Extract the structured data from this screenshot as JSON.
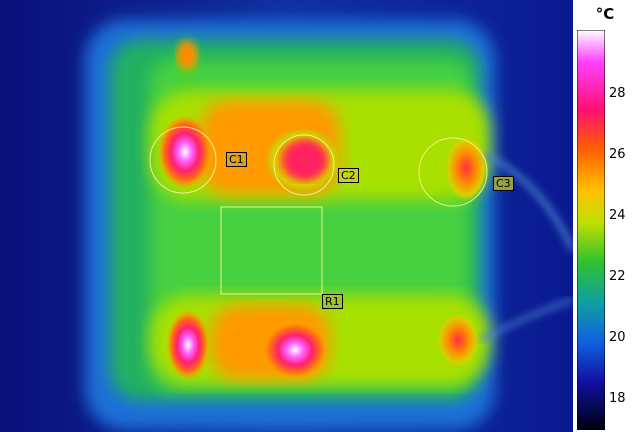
{
  "scale": {
    "unit": "°C",
    "ticks": [
      "28",
      "26",
      "24",
      "22",
      "20",
      "18"
    ]
  },
  "markers": {
    "circles": [
      {
        "label": "C1"
      },
      {
        "label": "C2"
      },
      {
        "label": "C3"
      }
    ],
    "rectangles": [
      {
        "label": "R1"
      }
    ]
  },
  "colors": {
    "marker_outline": "#f4f08a",
    "label_bg_c1": "#d9a21f",
    "label_bg_c2": "#c7d21a",
    "label_bg_c3": "#9aa044",
    "label_bg_r1": "#9bc72a"
  }
}
